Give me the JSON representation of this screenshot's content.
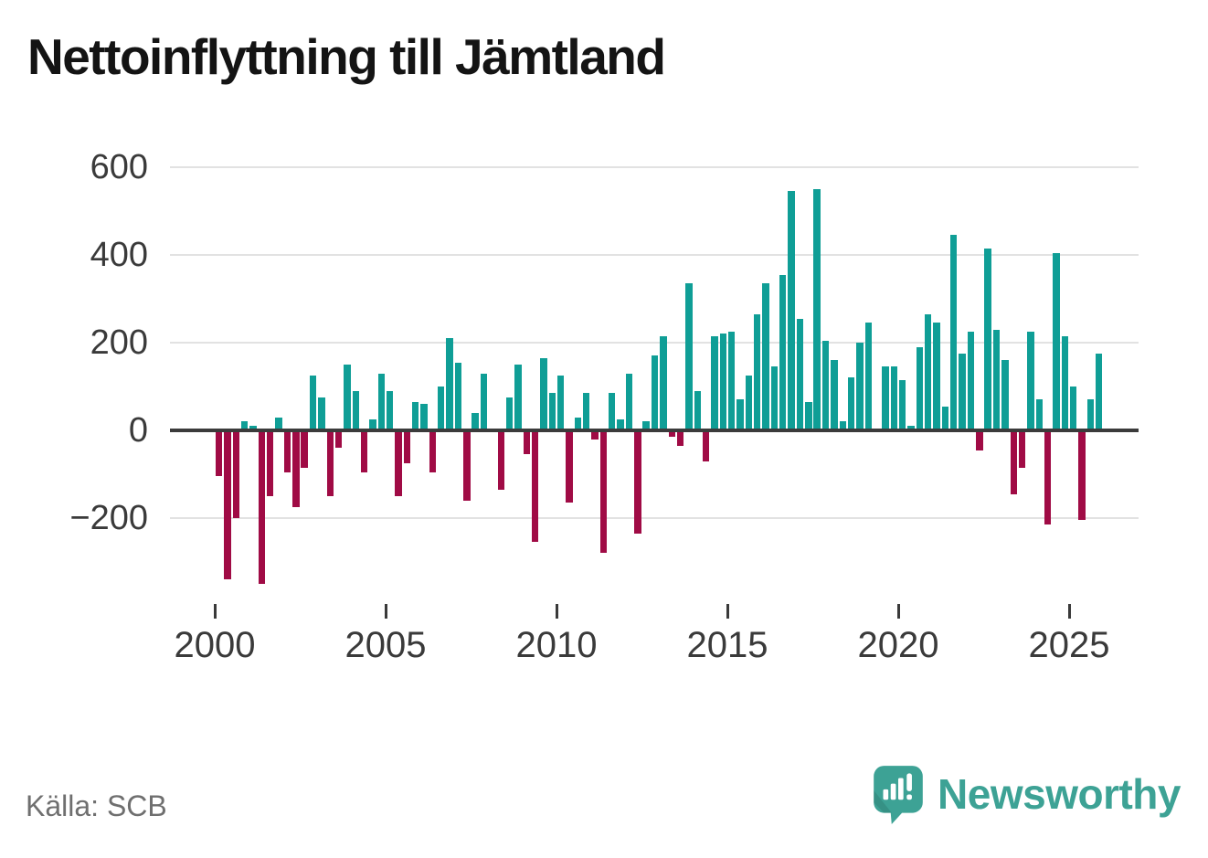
{
  "title": "Nettoinflyttning till Jämtland",
  "source": "Källa: SCB",
  "branding": {
    "name": "Newsworthy"
  },
  "colors": {
    "positive": "#0f9e96",
    "negative": "#a00b45",
    "zero_line": "#3b3b3b",
    "gridline": "#e2e2e2",
    "brand": "#3da295",
    "title_text": "#141414",
    "tick_text": "#3a3a3a",
    "source_text": "#6f6f6f"
  },
  "chart_data": {
    "type": "bar",
    "title": "Nettoinflyttning till Jämtland",
    "description": "Quarterly net migration to Jämtland, persons",
    "frequency": "quarterly",
    "start_year": 2000,
    "end": "2025 Q4",
    "grid": true,
    "ylim": [
      -400,
      650
    ],
    "y_ticks": [
      {
        "label": "600",
        "value": 600
      },
      {
        "label": "400",
        "value": 400
      },
      {
        "label": "200",
        "value": 200
      },
      {
        "label": "0",
        "value": 0
      },
      {
        "label": "−200",
        "value": -200
      }
    ],
    "x_ticks": [
      {
        "label": "2000",
        "year": 2000
      },
      {
        "label": "2005",
        "year": 2005
      },
      {
        "label": "2010",
        "year": 2010
      },
      {
        "label": "2015",
        "year": 2015
      },
      {
        "label": "2020",
        "year": 2020
      },
      {
        "label": "2025",
        "year": 2025
      }
    ],
    "values": [
      -105,
      -340,
      -200,
      20,
      10,
      -350,
      -150,
      30,
      -95,
      -175,
      -85,
      125,
      75,
      -150,
      -40,
      150,
      90,
      -95,
      25,
      130,
      90,
      -150,
      -75,
      65,
      60,
      -95,
      100,
      210,
      155,
      -160,
      40,
      130,
      0,
      -135,
      75,
      150,
      -55,
      -255,
      165,
      85,
      125,
      -165,
      30,
      85,
      -20,
      -280,
      85,
      25,
      130,
      -235,
      20,
      170,
      215,
      -15,
      -35,
      335,
      90,
      -70,
      215,
      220,
      225,
      70,
      125,
      265,
      335,
      145,
      355,
      545,
      255,
      65,
      550,
      205,
      160,
      20,
      120,
      200,
      245,
      0,
      145,
      145,
      115,
      10,
      190,
      265,
      245,
      55,
      445,
      175,
      225,
      -45,
      415,
      230,
      160,
      -145,
      -85,
      225,
      70,
      -215,
      405,
      215,
      100,
      -205,
      70,
      175
    ]
  }
}
